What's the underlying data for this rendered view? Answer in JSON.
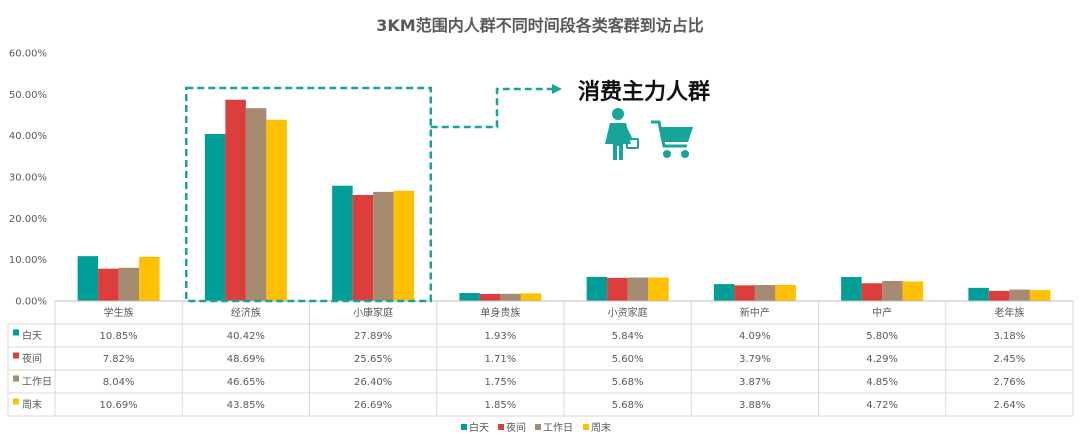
{
  "chart_data": {
    "type": "bar",
    "title": "3KM范围内人群不同时间段各类客群到访占比",
    "categories": [
      "学生族",
      "经济族",
      "小康家庭",
      "单身贵族",
      "小资家庭",
      "新中产",
      "中产",
      "老年族"
    ],
    "series": [
      {
        "name": "白天",
        "color": "#009E96",
        "values": [
          10.85,
          40.42,
          27.89,
          1.93,
          5.84,
          4.09,
          5.8,
          3.18
        ],
        "labels": [
          "10.85%",
          "40.42%",
          "27.89%",
          "1.93%",
          "5.84%",
          "4.09%",
          "5.80%",
          "3.18%"
        ]
      },
      {
        "name": "夜间",
        "color": "#DB3E3B",
        "values": [
          7.82,
          48.69,
          25.65,
          1.71,
          5.6,
          3.79,
          4.29,
          2.45
        ],
        "labels": [
          "7.82%",
          "48.69%",
          "25.65%",
          "1.71%",
          "5.60%",
          "3.79%",
          "4.29%",
          "2.45%"
        ]
      },
      {
        "name": "工作日",
        "color": "#A58B6F",
        "values": [
          8.04,
          46.65,
          26.4,
          1.75,
          5.68,
          3.87,
          4.85,
          2.76
        ],
        "labels": [
          "8.04%",
          "46.65%",
          "26.40%",
          "1.75%",
          "5.68%",
          "3.87%",
          "4.85%",
          "2.76%"
        ]
      },
      {
        "name": "周末",
        "color": "#FFC000",
        "values": [
          10.69,
          43.85,
          26.69,
          1.85,
          5.68,
          3.88,
          4.72,
          2.64
        ],
        "labels": [
          "10.69%",
          "43.85%",
          "26.69%",
          "1.85%",
          "5.68%",
          "3.88%",
          "4.72%",
          "2.64%"
        ]
      }
    ],
    "ylim": [
      0,
      60
    ],
    "yticks": [
      "0.00%",
      "10.00%",
      "20.00%",
      "30.00%",
      "40.00%",
      "50.00%",
      "60.00%"
    ],
    "grid": false,
    "legend": "bottom-center",
    "data_table": true
  },
  "callout": {
    "text": "消费主力人群",
    "highlighted_categories": [
      "经济族",
      "小康家庭"
    ],
    "accent_color": "#17A59A",
    "icons": [
      "woman-shopper-icon",
      "shopping-cart-icon"
    ]
  }
}
